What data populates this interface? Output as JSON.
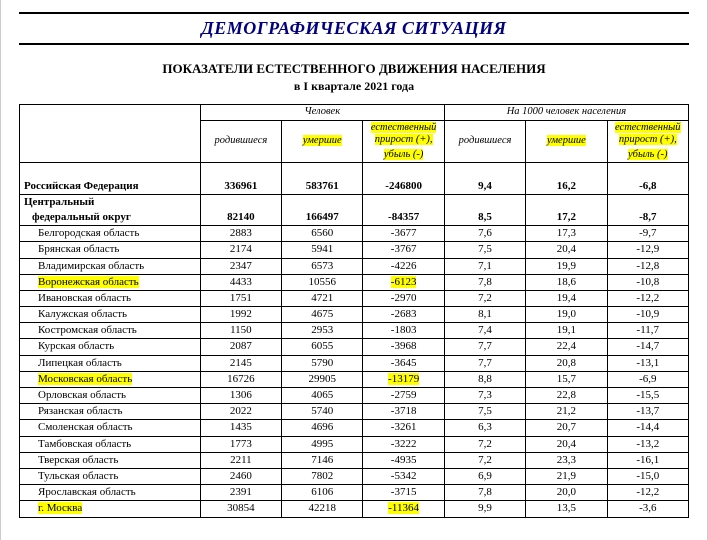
{
  "title": "ДЕМОГРАФИЧЕСКАЯ СИТУАЦИЯ",
  "subtitle1": "ПОКАЗАТЕЛИ ЕСТЕСТВЕННОГО ДВИЖЕНИЯ НАСЕЛЕНИЯ",
  "subtitle2": "в I квартале 2021 года",
  "headers": {
    "group1": "Человек",
    "group2": "На 1000 человек населения",
    "born": "родившиеся",
    "died": "умершие",
    "growth1": "естественный прирост (+),",
    "growth2": "убыль (-)"
  },
  "rows": [
    {
      "level": 1,
      "bold": true,
      "hlName": false,
      "hlC3": false,
      "name": "Российская Федерация",
      "c1": "336961",
      "c2": "583761",
      "c3": "-246800",
      "c4": "9,4",
      "c5": "16,2",
      "c6": "-6,8"
    },
    {
      "level": 1,
      "bold": true,
      "hlName": false,
      "hlC3": false,
      "name": "Центральный",
      "c1": "",
      "c2": "",
      "c3": "",
      "c4": "",
      "c5": "",
      "c6": ""
    },
    {
      "level": 2,
      "bold": true,
      "hlName": false,
      "hlC3": false,
      "name": "федеральный округ",
      "c1": "82140",
      "c2": "166497",
      "c3": "-84357",
      "c4": "8,5",
      "c5": "17,2",
      "c6": "-8,7",
      "mergeUp": true
    },
    {
      "level": 3,
      "bold": false,
      "hlName": false,
      "hlC3": false,
      "name": "Белгородская область",
      "c1": "2883",
      "c2": "6560",
      "c3": "-3677",
      "c4": "7,6",
      "c5": "17,3",
      "c6": "-9,7"
    },
    {
      "level": 3,
      "bold": false,
      "hlName": false,
      "hlC3": false,
      "name": "Брянская область",
      "c1": "2174",
      "c2": "5941",
      "c3": "-3767",
      "c4": "7,5",
      "c5": "20,4",
      "c6": "-12,9"
    },
    {
      "level": 3,
      "bold": false,
      "hlName": false,
      "hlC3": false,
      "name": "Владимирская область",
      "c1": "2347",
      "c2": "6573",
      "c3": "-4226",
      "c4": "7,1",
      "c5": "19,9",
      "c6": "-12,8"
    },
    {
      "level": 3,
      "bold": false,
      "hlName": true,
      "hlC3": true,
      "name": "Воронежская область",
      "c1": "4433",
      "c2": "10556",
      "c3": "-6123",
      "c4": "7,8",
      "c5": "18,6",
      "c6": "-10,8"
    },
    {
      "level": 3,
      "bold": false,
      "hlName": false,
      "hlC3": false,
      "name": "Ивановская область",
      "c1": "1751",
      "c2": "4721",
      "c3": "-2970",
      "c4": "7,2",
      "c5": "19,4",
      "c6": "-12,2"
    },
    {
      "level": 3,
      "bold": false,
      "hlName": false,
      "hlC3": false,
      "name": "Калужская область",
      "c1": "1992",
      "c2": "4675",
      "c3": "-2683",
      "c4": "8,1",
      "c5": "19,0",
      "c6": "-10,9"
    },
    {
      "level": 3,
      "bold": false,
      "hlName": false,
      "hlC3": false,
      "name": "Костромская область",
      "c1": "1150",
      "c2": "2953",
      "c3": "-1803",
      "c4": "7,4",
      "c5": "19,1",
      "c6": "-11,7"
    },
    {
      "level": 3,
      "bold": false,
      "hlName": false,
      "hlC3": false,
      "name": "Курская область",
      "c1": "2087",
      "c2": "6055",
      "c3": "-3968",
      "c4": "7,7",
      "c5": "22,4",
      "c6": "-14,7"
    },
    {
      "level": 3,
      "bold": false,
      "hlName": false,
      "hlC3": false,
      "name": "Липецкая область",
      "c1": "2145",
      "c2": "5790",
      "c3": "-3645",
      "c4": "7,7",
      "c5": "20,8",
      "c6": "-13,1"
    },
    {
      "level": 3,
      "bold": false,
      "hlName": true,
      "hlC3": true,
      "name": "Московская область",
      "c1": "16726",
      "c2": "29905",
      "c3": "-13179",
      "c4": "8,8",
      "c5": "15,7",
      "c6": "-6,9"
    },
    {
      "level": 3,
      "bold": false,
      "hlName": false,
      "hlC3": false,
      "name": "Орловская область",
      "c1": "1306",
      "c2": "4065",
      "c3": "-2759",
      "c4": "7,3",
      "c5": "22,8",
      "c6": "-15,5"
    },
    {
      "level": 3,
      "bold": false,
      "hlName": false,
      "hlC3": false,
      "name": "Рязанская область",
      "c1": "2022",
      "c2": "5740",
      "c3": "-3718",
      "c4": "7,5",
      "c5": "21,2",
      "c6": "-13,7"
    },
    {
      "level": 3,
      "bold": false,
      "hlName": false,
      "hlC3": false,
      "name": "Смоленская область",
      "c1": "1435",
      "c2": "4696",
      "c3": "-3261",
      "c4": "6,3",
      "c5": "20,7",
      "c6": "-14,4"
    },
    {
      "level": 3,
      "bold": false,
      "hlName": false,
      "hlC3": false,
      "name": "Тамбовская область",
      "c1": "1773",
      "c2": "4995",
      "c3": "-3222",
      "c4": "7,2",
      "c5": "20,4",
      "c6": "-13,2"
    },
    {
      "level": 3,
      "bold": false,
      "hlName": false,
      "hlC3": false,
      "name": "Тверская область",
      "c1": "2211",
      "c2": "7146",
      "c3": "-4935",
      "c4": "7,2",
      "c5": "23,3",
      "c6": "-16,1"
    },
    {
      "level": 3,
      "bold": false,
      "hlName": false,
      "hlC3": false,
      "name": "Тульская область",
      "c1": "2460",
      "c2": "7802",
      "c3": "-5342",
      "c4": "6,9",
      "c5": "21,9",
      "c6": "-15,0"
    },
    {
      "level": 3,
      "bold": false,
      "hlName": false,
      "hlC3": false,
      "name": "Ярославская область",
      "c1": "2391",
      "c2": "6106",
      "c3": "-3715",
      "c4": "7,8",
      "c5": "20,0",
      "c6": "-12,2"
    },
    {
      "level": 3,
      "bold": false,
      "hlName": true,
      "hlC3": true,
      "name": "г. Москва",
      "c1": "30854",
      "c2": "42218",
      "c3": "-11364",
      "c4": "9,9",
      "c5": "13,5",
      "c6": "-3,6"
    }
  ]
}
